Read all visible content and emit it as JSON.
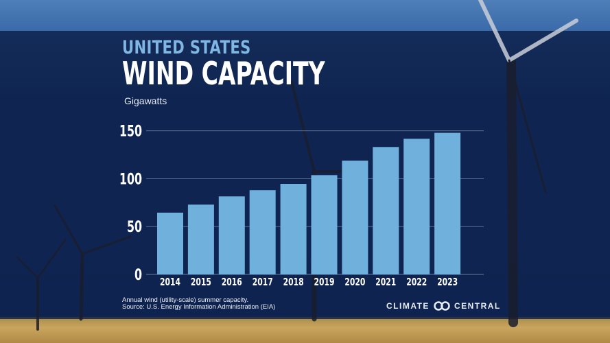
{
  "header": {
    "title_line1": "UNITED STATES",
    "title_line2": "WIND CAPACITY",
    "unit_label": "Gigawatts"
  },
  "footer": {
    "note_line1": "Annual wind (utility-scale) summer capacity.",
    "note_line2": "Source: U.S. Energy Information Administration (EIA)",
    "logo_left": "CLIMATE",
    "logo_right": "CENTRAL",
    "logo_icon": "infinity-rings-icon"
  },
  "colors": {
    "bar": "#6fb0dc",
    "background": "#0f2250",
    "title_accent": "#7fb6e4"
  },
  "chart_data": {
    "type": "bar",
    "title": "WIND CAPACITY",
    "ylabel": "Gigawatts",
    "categories": [
      "2014",
      "2015",
      "2016",
      "2017",
      "2018",
      "2019",
      "2020",
      "2021",
      "2022",
      "2023"
    ],
    "values": [
      64.5,
      72.9,
      81.5,
      88,
      94.6,
      103.7,
      118.8,
      133.1,
      141.7,
      147.9
    ],
    "yticks": [
      0,
      50,
      100,
      150
    ],
    "ylim": [
      0,
      150
    ],
    "grid": true
  }
}
